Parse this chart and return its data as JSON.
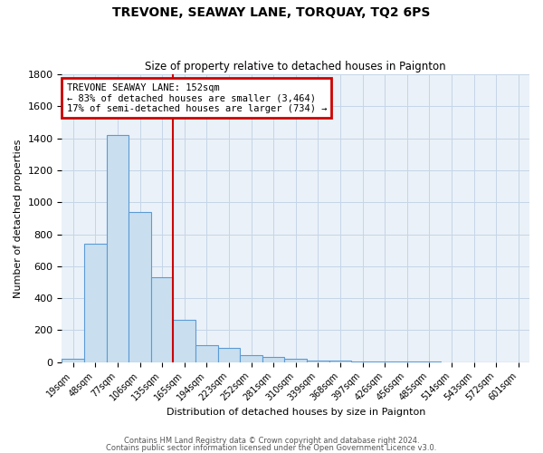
{
  "title": "TREVONE, SEAWAY LANE, TORQUAY, TQ2 6PS",
  "subtitle": "Size of property relative to detached houses in Paignton",
  "xlabel": "Distribution of detached houses by size in Paignton",
  "ylabel": "Number of detached properties",
  "bar_labels": [
    "19sqm",
    "48sqm",
    "77sqm",
    "106sqm",
    "135sqm",
    "165sqm",
    "194sqm",
    "223sqm",
    "252sqm",
    "281sqm",
    "310sqm",
    "339sqm",
    "368sqm",
    "397sqm",
    "426sqm",
    "456sqm",
    "485sqm",
    "514sqm",
    "543sqm",
    "572sqm",
    "601sqm"
  ],
  "bar_values": [
    20,
    740,
    1420,
    940,
    530,
    265,
    105,
    90,
    45,
    30,
    20,
    10,
    10,
    5,
    5,
    5,
    5,
    0,
    0,
    0,
    0
  ],
  "bar_color": "#c9dff0",
  "bar_edge_color": "#5b9bd5",
  "vline_color": "#cc0000",
  "annotation_title": "TREVONE SEAWAY LANE: 152sqm",
  "annotation_line1": "← 83% of detached houses are smaller (3,464)",
  "annotation_line2": "17% of semi-detached houses are larger (734) →",
  "annotation_box_color": "#cc0000",
  "ylim": [
    0,
    1800
  ],
  "footer1": "Contains HM Land Registry data © Crown copyright and database right 2024.",
  "footer2": "Contains public sector information licensed under the Open Government Licence v3.0.",
  "background_color": "#ffffff",
  "grid_color": "#c5d5e8"
}
